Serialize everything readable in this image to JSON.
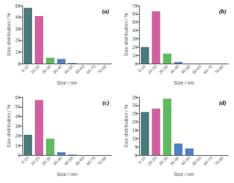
{
  "chart_data": [
    {
      "type": "bar",
      "annotation": "(a)",
      "xlabel": "Size / nm",
      "ylabel": "Size distribution / %",
      "categories": [
        "0-10",
        "10-20",
        "20-30",
        "30-40",
        "40-50",
        "50-60",
        "60-70",
        "70-80"
      ],
      "values": [
        48,
        41,
        5,
        4,
        0.5,
        0,
        0,
        0
      ],
      "colors": [
        "#4a7a7a",
        "#d060a0",
        "#60b860",
        "#5080c0",
        "#5080c0",
        "#5080c0",
        "#5080c0",
        "#5080c0"
      ],
      "ylim": [
        0,
        50
      ],
      "yticks": [
        0,
        10,
        20,
        30,
        40,
        50
      ],
      "grid": false
    },
    {
      "type": "bar",
      "annotation": "(b)",
      "xlabel": "Size / nm",
      "ylabel": "Size distribution / %",
      "categories": [
        "0-10",
        "10-20",
        "20-30",
        "30-40",
        "40-50",
        "50-60",
        "60-70",
        "70-80"
      ],
      "values": [
        20,
        63,
        12,
        2,
        0,
        0,
        0,
        0
      ],
      "colors": [
        "#4a7a7a",
        "#d060a0",
        "#60b860",
        "#5080c0",
        "#5080c0",
        "#5080c0",
        "#5080c0",
        "#5080c0"
      ],
      "ylim": [
        0,
        70
      ],
      "yticks": [
        0,
        10,
        20,
        30,
        40,
        50,
        60,
        70
      ],
      "grid": false
    },
    {
      "type": "bar",
      "annotation": "(c)",
      "xlabel": "Size / nm",
      "ylabel": "Size distribution / %",
      "categories": [
        "0-10",
        "10-20",
        "20-30",
        "30-40",
        "40-50",
        "50-60",
        "60-70",
        "70-80"
      ],
      "values": [
        21,
        57,
        17,
        3,
        0.5,
        0,
        0,
        0
      ],
      "colors": [
        "#4a7a7a",
        "#d060a0",
        "#60b860",
        "#5080c0",
        "#5080c0",
        "#5080c0",
        "#5080c0",
        "#5080c0"
      ],
      "ylim": [
        0,
        60
      ],
      "yticks": [
        0,
        10,
        20,
        30,
        40,
        50,
        60
      ],
      "grid": false
    },
    {
      "type": "bar",
      "annotation": "(d)",
      "xlabel": "Size / nm",
      "ylabel": "Size distribution / %",
      "categories": [
        "0-10",
        "10-20",
        "20-30",
        "30-40",
        "40-50",
        "50-60",
        "60-70",
        "70-80"
      ],
      "values": [
        26,
        28,
        34,
        7,
        4,
        0,
        0,
        0
      ],
      "colors": [
        "#4a7a7a",
        "#d060a0",
        "#60b860",
        "#5080c0",
        "#5080c0",
        "#5080c0",
        "#5080c0",
        "#5080c0"
      ],
      "ylim": [
        0,
        35
      ],
      "yticks": [
        0,
        5,
        10,
        15,
        20,
        25,
        30,
        35
      ],
      "grid": false
    }
  ]
}
